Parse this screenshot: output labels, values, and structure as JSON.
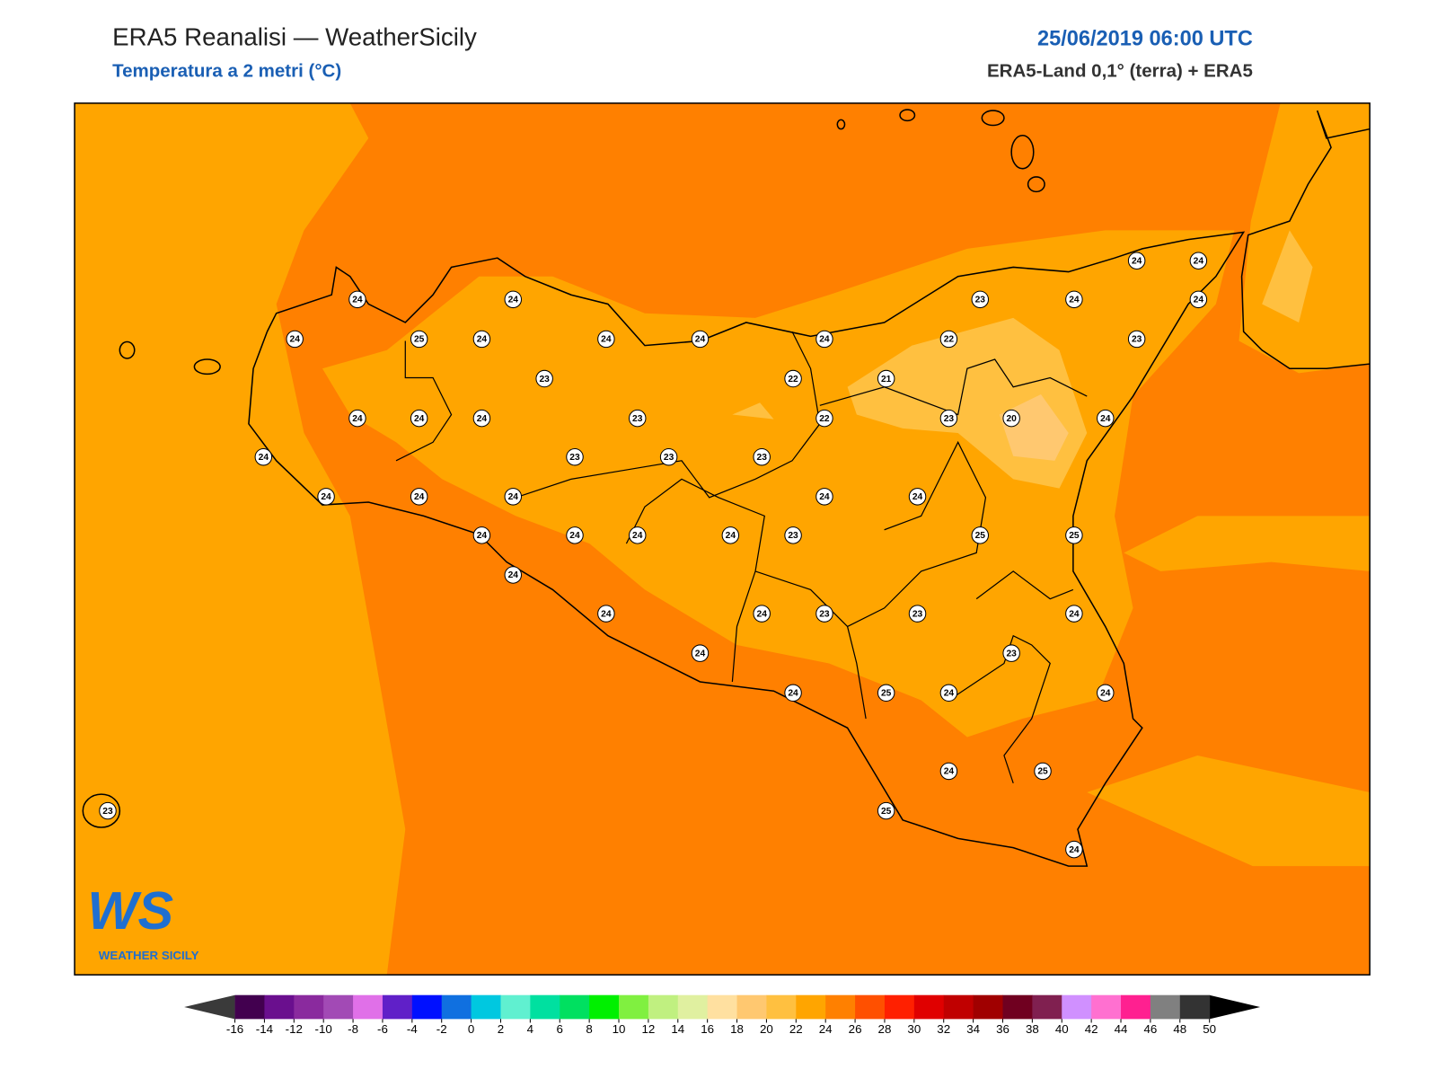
{
  "header": {
    "title": "ERA5 Reanalisi — WeatherSicily",
    "subtitle": "Temperatura a 2 metri (°C)",
    "datetime": "25/06/2019 06:00 UTC",
    "source": "ERA5-Land 0,1° (terra) + ERA5"
  },
  "stations": [
    24,
    24,
    24,
    25,
    24,
    24,
    24,
    24,
    23,
    22,
    21,
    23,
    24,
    24,
    24,
    24,
    22,
    23,
    24,
    24,
    24,
    23,
    22,
    23,
    20,
    24,
    24,
    23,
    23,
    23,
    24,
    24,
    24,
    24,
    24,
    24,
    24,
    24,
    24,
    23,
    25,
    25,
    24,
    24,
    24,
    23,
    23,
    24,
    23,
    24,
    24,
    25,
    24,
    24,
    24,
    25,
    25,
    24,
    23
  ],
  "colorbar": {
    "ticks": [
      -16,
      -14,
      -12,
      -10,
      -8,
      -6,
      -4,
      -2,
      0,
      2,
      4,
      6,
      8,
      10,
      12,
      14,
      16,
      18,
      20,
      22,
      24,
      26,
      28,
      30,
      32,
      34,
      36,
      38,
      40,
      42,
      44,
      46,
      48,
      50
    ],
    "colors": [
      "#42004f",
      "#6a0f8e",
      "#8a2a9e",
      "#a24ab5",
      "#e070e8",
      "#6020c8",
      "#0010ff",
      "#1070e0",
      "#00c8e0",
      "#60f0d0",
      "#00e0a0",
      "#00e060",
      "#00f000",
      "#80f040",
      "#c0f080",
      "#e0f0a0",
      "#ffe0a0",
      "#ffc870",
      "#ffc040",
      "#ffa500",
      "#ff8000",
      "#ff5000",
      "#ff2000",
      "#e00000",
      "#c00000",
      "#a00000",
      "#700020",
      "#802050",
      "#d090ff",
      "#ff70d0",
      "#ff2090",
      "#808080",
      "#333333"
    ],
    "extend_low": "#3a3a3a",
    "extend_high": "#000000"
  },
  "logo": {
    "text": "WS",
    "caption": "WEATHER SICILY"
  }
}
